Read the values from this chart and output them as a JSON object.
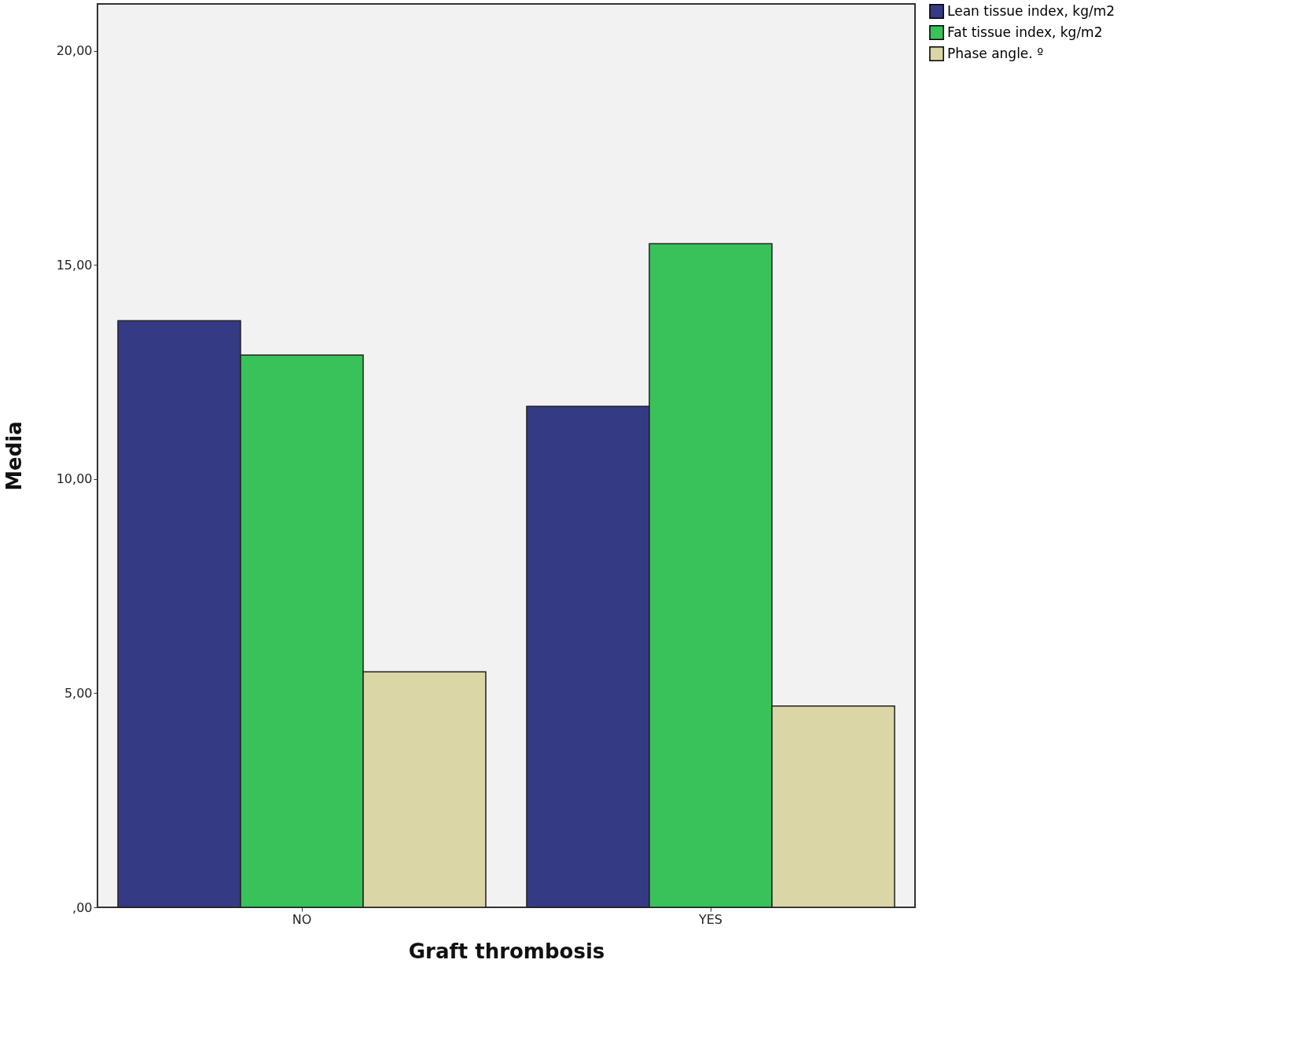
{
  "chart_data": {
    "type": "bar",
    "xlabel": "Graft thrombosis",
    "ylabel": "Media",
    "categories": [
      "NO",
      "YES"
    ],
    "series": [
      {
        "name": "Lean tissue index, kg/m2",
        "color": "#353a85",
        "values": [
          13.7,
          11.7
        ]
      },
      {
        "name": "Fat tissue index, kg/m2",
        "color": "#39c15a",
        "values": [
          12.9,
          15.5
        ]
      },
      {
        "name": "Phase angle. º",
        "color": "#dad6a6",
        "values": [
          5.5,
          4.7
        ]
      }
    ],
    "ylim": [
      0,
      21.1
    ],
    "yticks": [
      {
        "value": 0,
        "label": ",00"
      },
      {
        "value": 5,
        "label": "5,00"
      },
      {
        "value": 10,
        "label": "10,00"
      },
      {
        "value": 15,
        "label": "15,00"
      },
      {
        "value": 20,
        "label": "20,00"
      }
    ],
    "grid": false,
    "legend": "top right"
  }
}
